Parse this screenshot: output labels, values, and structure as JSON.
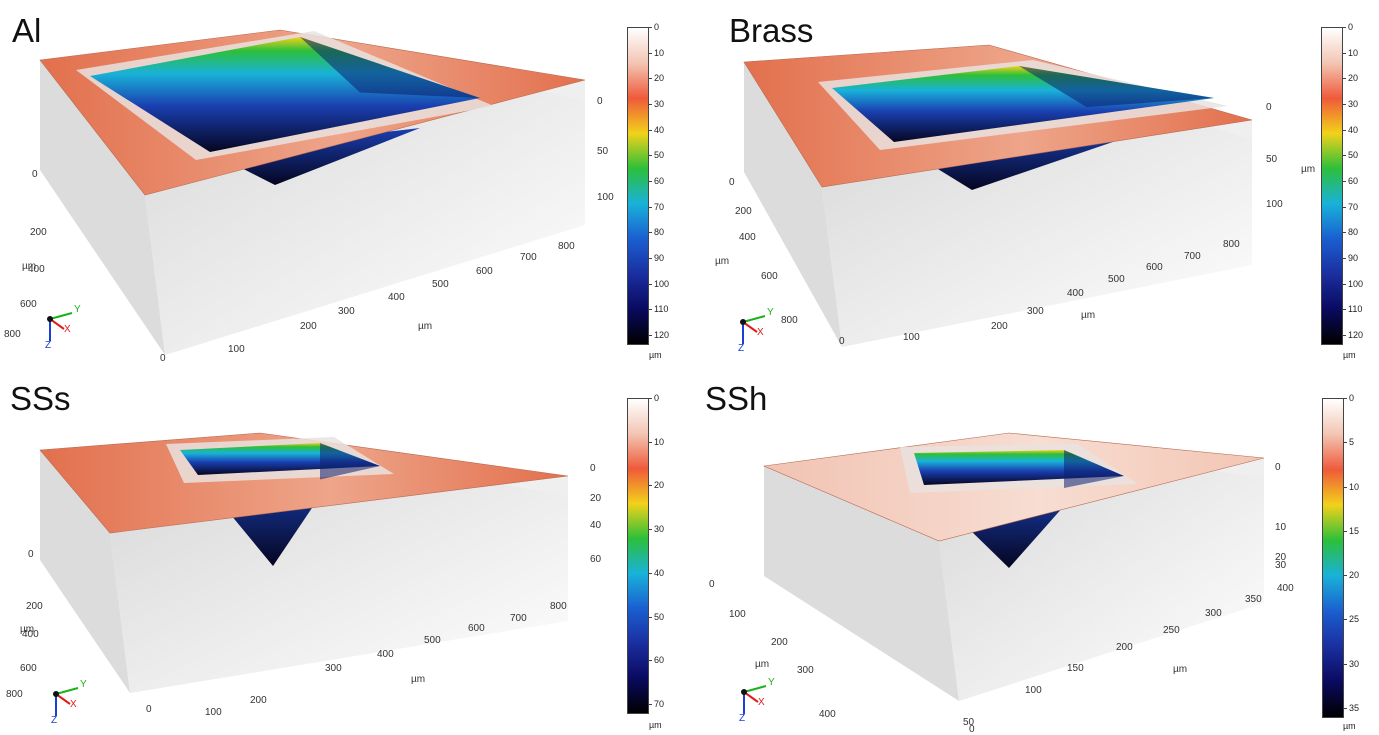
{
  "panels": [
    {
      "title": "Al",
      "colorbar": {
        "ticks": [
          "0",
          "10",
          "20",
          "30",
          "40",
          "50",
          "60",
          "70",
          "80",
          "90",
          "100",
          "110",
          "120"
        ],
        "unit": "µm"
      },
      "z_ticks": [
        "0",
        "50",
        "100"
      ],
      "x_ticks": [
        "100",
        "200",
        "300",
        "400",
        "500",
        "600",
        "700",
        "800"
      ],
      "x_label": "µm",
      "y_ticks": [
        "0",
        "200",
        "400",
        "600",
        "800"
      ],
      "y_label": "µm",
      "x_origin": "0",
      "z_extra": ""
    },
    {
      "title": "Brass",
      "colorbar": {
        "ticks": [
          "0",
          "10",
          "20",
          "30",
          "40",
          "50",
          "60",
          "70",
          "80",
          "90",
          "100",
          "110",
          "120"
        ],
        "unit": "µm"
      },
      "z_ticks": [
        "0",
        "50",
        "100"
      ],
      "z_label": "µm",
      "x_ticks": [
        "100",
        "200",
        "300",
        "400",
        "500",
        "600",
        "700",
        "800"
      ],
      "x_label": "µm",
      "y_ticks": [
        "0",
        "200",
        "400",
        "600",
        "800"
      ],
      "y_label": "µm",
      "x_origin": "0"
    },
    {
      "title": "SSs",
      "colorbar": {
        "ticks": [
          "0",
          "10",
          "20",
          "30",
          "40",
          "50",
          "60",
          "70"
        ],
        "unit": "µm"
      },
      "z_ticks": [
        "0",
        "20",
        "40",
        "60"
      ],
      "x_ticks": [
        "100",
        "200",
        "300",
        "400",
        "500",
        "600",
        "700",
        "800"
      ],
      "x_label": "µm",
      "y_ticks": [
        "0",
        "200",
        "400",
        "600",
        "800"
      ],
      "y_label": "µm",
      "x_origin": "0"
    },
    {
      "title": "SSh",
      "colorbar": {
        "ticks": [
          "0",
          "5",
          "10",
          "15",
          "20",
          "25",
          "30",
          "35"
        ],
        "unit": "µm"
      },
      "z_ticks": [
        "0",
        "10",
        "20",
        "30"
      ],
      "x_ticks": [
        "50",
        "100",
        "150",
        "200",
        "250",
        "300",
        "350",
        "400"
      ],
      "x_label": "µm",
      "y_ticks": [
        "0",
        "100",
        "200",
        "300",
        "400"
      ],
      "y_label": "µm",
      "x_origin": "0"
    }
  ],
  "triad": {
    "x": "X",
    "y": "Y",
    "z": "Z"
  },
  "colors": {
    "surface": "#e2704d",
    "surface_light": "#f1c3b2",
    "pit_deep": "#050520",
    "pit_mid": "#1a3fb0",
    "pit_cyan": "#19b2d9",
    "pit_green": "#2dbf3a",
    "pit_yellow": "#f2d21a",
    "axis_x": "#e11b1b",
    "axis_y": "#19b319",
    "axis_z": "#1b3fd6"
  }
}
